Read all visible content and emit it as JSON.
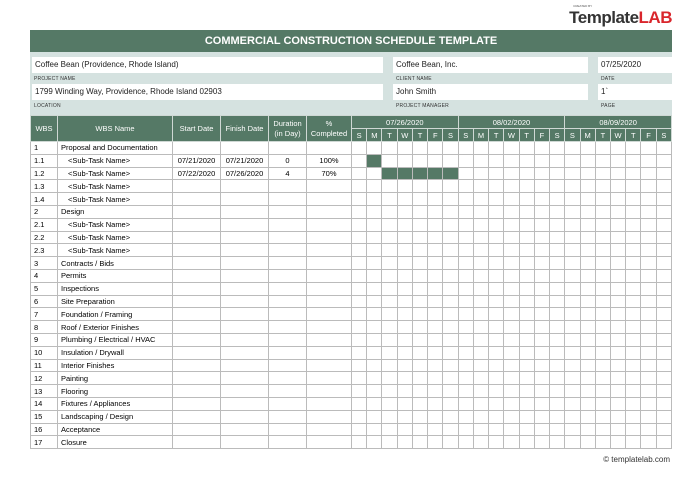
{
  "logo": {
    "small": "CREATED BY",
    "text1": "Template",
    "text2": "LAB"
  },
  "title": "COMMERCIAL CONSTRUCTION SCHEDULE TEMPLATE",
  "info": {
    "project_name": "Coffee Bean (Providence, Rhode Island)",
    "project_name_label": "PROJECT NAME",
    "client_name": "Coffee Bean, Inc.",
    "client_name_label": "CLIENT NAME",
    "date": "07/25/2020",
    "date_label": "DATE",
    "location": "1799  Winding Way, Providence, Rhode Island   02903",
    "location_label": "LOCATION",
    "project_manager": "John Smith",
    "project_manager_label": "PROJECT MANAGER",
    "page": "1`",
    "page_label": "PAGE"
  },
  "headers": {
    "wbs": "WBS",
    "name": "WBS Name",
    "start": "Start Date",
    "finish": "Finish Date",
    "duration": "Duration (in Day)",
    "pct": "% Completed"
  },
  "weeks": [
    "07/26/2020",
    "08/02/2020",
    "08/09/2020"
  ],
  "days": [
    "S",
    "M",
    "T",
    "W",
    "T",
    "F",
    "S"
  ],
  "bar_color": "#557966",
  "rows": [
    {
      "wbs": "1",
      "name": "Proposal and Documentation"
    },
    {
      "wbs": "1.1",
      "name": "<Sub-Task Name>",
      "sub": true,
      "start": "07/21/2020",
      "finish": "07/21/2020",
      "duration": "0",
      "pct": "100%",
      "bar": [
        1,
        1
      ]
    },
    {
      "wbs": "1.2",
      "name": "<Sub-Task Name>",
      "sub": true,
      "start": "07/22/2020",
      "finish": "07/26/2020",
      "duration": "4",
      "pct": "70%",
      "bar": [
        2,
        6
      ]
    },
    {
      "wbs": "1.3",
      "name": "<Sub-Task Name>",
      "sub": true
    },
    {
      "wbs": "1.4",
      "name": "<Sub-Task Name>",
      "sub": true
    },
    {
      "wbs": "2",
      "name": "Design"
    },
    {
      "wbs": "2.1",
      "name": "<Sub-Task Name>",
      "sub": true
    },
    {
      "wbs": "2.2",
      "name": "<Sub-Task Name>",
      "sub": true
    },
    {
      "wbs": "2.3",
      "name": "<Sub-Task Name>",
      "sub": true
    },
    {
      "wbs": "3",
      "name": "Contracts / Bids"
    },
    {
      "wbs": "4",
      "name": "Permits"
    },
    {
      "wbs": "5",
      "name": "Inspections"
    },
    {
      "wbs": "6",
      "name": "Site Preparation"
    },
    {
      "wbs": "7",
      "name": "Foundation / Framing"
    },
    {
      "wbs": "8",
      "name": "Roof / Exterior Finishes"
    },
    {
      "wbs": "9",
      "name": "Plumbing / Electrical / HVAC"
    },
    {
      "wbs": "10",
      "name": "Insulation / Drywall"
    },
    {
      "wbs": "11",
      "name": "Interior Finishes"
    },
    {
      "wbs": "12",
      "name": "Painting"
    },
    {
      "wbs": "13",
      "name": "Flooring"
    },
    {
      "wbs": "14",
      "name": "Fixtures / Appliances"
    },
    {
      "wbs": "15",
      "name": "Landscaping / Design"
    },
    {
      "wbs": "16",
      "name": "Acceptance"
    },
    {
      "wbs": "17",
      "name": "Closure"
    }
  ],
  "footer": "© templatelab.com"
}
